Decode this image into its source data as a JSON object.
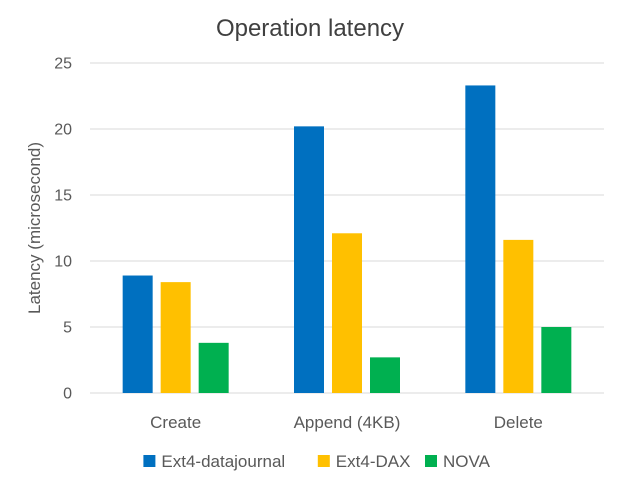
{
  "chart_data": {
    "type": "bar",
    "title": "Operation latency",
    "xlabel": "",
    "ylabel": "Latency (microsecond)",
    "ylim": [
      0,
      25
    ],
    "yticks": [
      0,
      5,
      10,
      15,
      20,
      25
    ],
    "categories": [
      "Create",
      "Append (4KB)",
      "Delete"
    ],
    "series": [
      {
        "name": "Ext4-datajournal",
        "color": "#0070C0",
        "values": [
          8.9,
          20.2,
          23.3
        ]
      },
      {
        "name": "Ext4-DAX",
        "color": "#FFC000",
        "values": [
          8.4,
          12.1,
          11.6
        ]
      },
      {
        "name": "NOVA",
        "color": "#00B050",
        "values": [
          3.8,
          2.7,
          5.0
        ]
      }
    ],
    "grid": true,
    "legend_position": "bottom"
  }
}
